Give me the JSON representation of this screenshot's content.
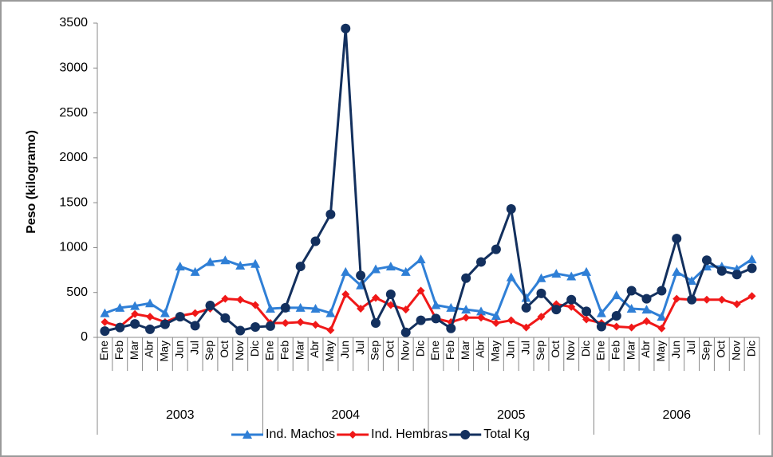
{
  "chart_data": {
    "type": "line",
    "y_label": "Peso (kilogramo)",
    "categories": [
      "Ene",
      "Feb",
      "Mar",
      "Abr",
      "May",
      "Jun",
      "Jul",
      "Sep",
      "Oct",
      "Nov",
      "Dic",
      "Ene",
      "Feb",
      "Mar",
      "Abr",
      "May",
      "Jun",
      "Jul",
      "Sep",
      "Oct",
      "Nov",
      "Dic",
      "Ene",
      "Feb",
      "Mar",
      "Abr",
      "May",
      "Jun",
      "Jul",
      "Sep",
      "Oct",
      "Nov",
      "Dic",
      "Ene",
      "Feb",
      "Mar",
      "Abr",
      "May",
      "Jun",
      "Jul",
      "Sep",
      "Oct",
      "Nov",
      "Dic"
    ],
    "groups": [
      "2003",
      "2004",
      "2005",
      "2006"
    ],
    "ylim": [
      0,
      3500
    ],
    "yticks": [
      0,
      500,
      1000,
      1500,
      2000,
      2500,
      3000,
      3500
    ],
    "grid": false,
    "legend": "bottom",
    "series": [
      {
        "name": "Ind. Machos",
        "color": "#2f7fd6",
        "marker": "triangle",
        "values": [
          270,
          330,
          350,
          380,
          270,
          790,
          730,
          840,
          860,
          800,
          820,
          320,
          330,
          330,
          320,
          270,
          730,
          580,
          760,
          790,
          730,
          870,
          360,
          330,
          310,
          290,
          240,
          670,
          440,
          660,
          710,
          680,
          730,
          270,
          470,
          320,
          310,
          230,
          730,
          630,
          790,
          790,
          760,
          870
        ]
      },
      {
        "name": "Ind. Hembras",
        "color": "#f01818",
        "marker": "diamond",
        "values": [
          170,
          120,
          260,
          230,
          170,
          240,
          270,
          320,
          430,
          420,
          360,
          160,
          160,
          170,
          140,
          80,
          480,
          320,
          440,
          360,
          310,
          520,
          210,
          170,
          220,
          220,
          160,
          190,
          110,
          230,
          370,
          340,
          200,
          160,
          120,
          110,
          180,
          100,
          430,
          420,
          420,
          420,
          370,
          460
        ]
      },
      {
        "name": "Total Kg",
        "color": "#13305e",
        "marker": "circle",
        "values": [
          70,
          110,
          150,
          90,
          145,
          230,
          130,
          355,
          215,
          75,
          115,
          125,
          330,
          790,
          1070,
          1370,
          3440,
          690,
          160,
          480,
          55,
          190,
          210,
          100,
          660,
          840,
          980,
          1430,
          330,
          490,
          310,
          420,
          290,
          120,
          240,
          520,
          430,
          520,
          1100,
          420,
          860,
          740,
          700,
          770
        ]
      }
    ]
  }
}
